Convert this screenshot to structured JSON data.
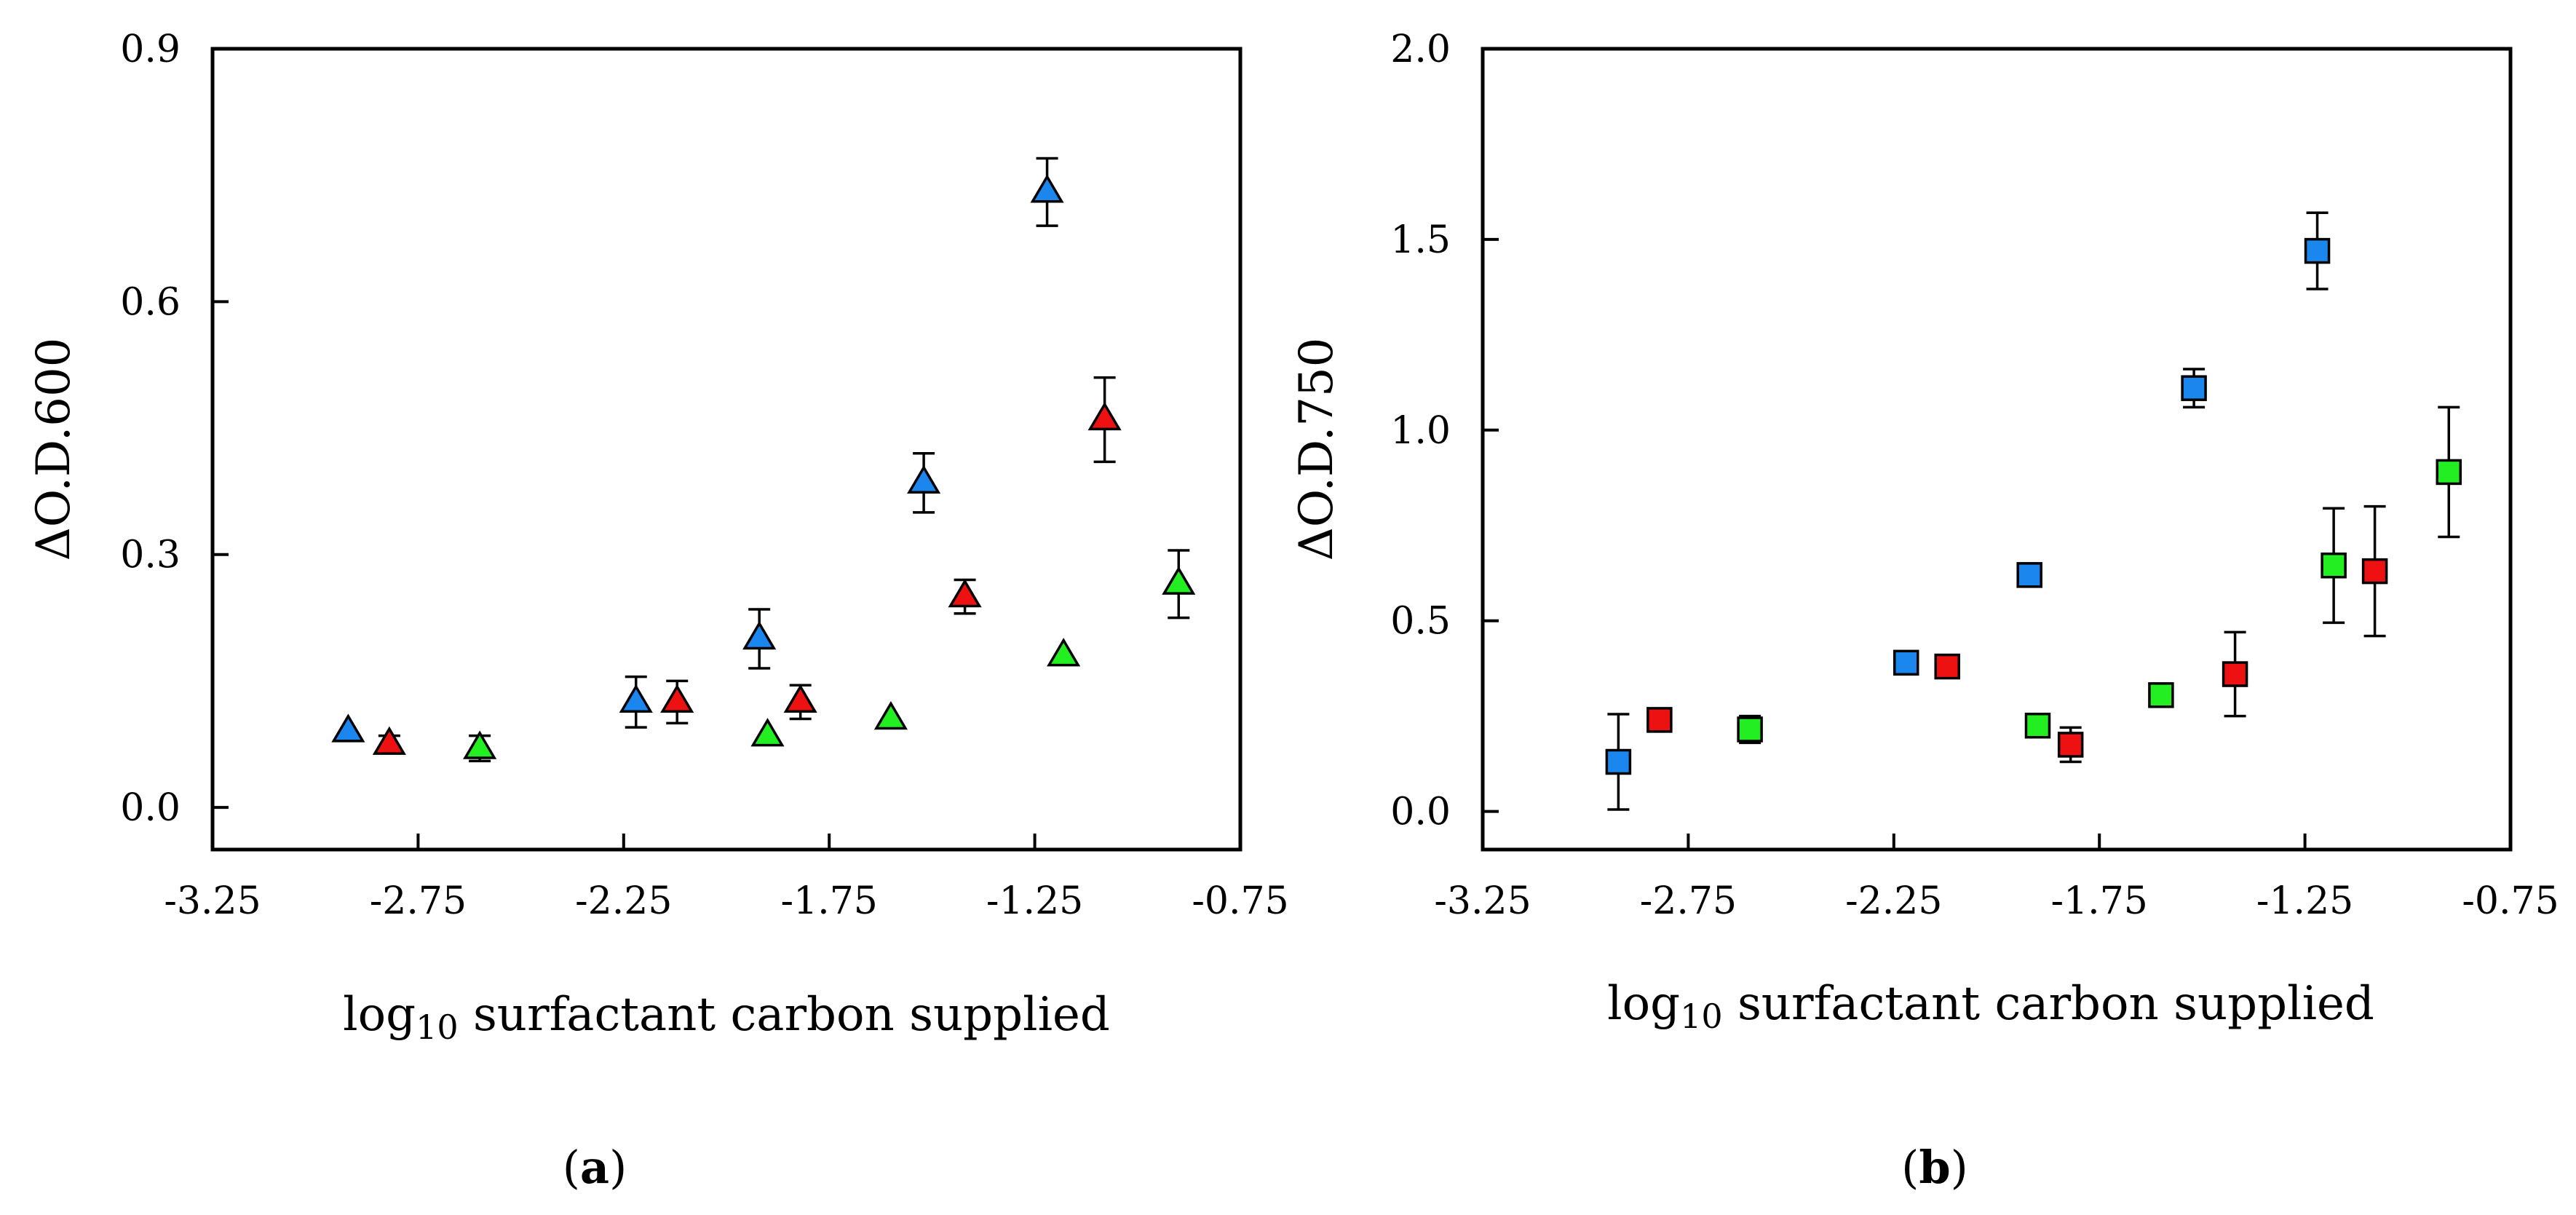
{
  "colors": {
    "blue": "#1a86ee",
    "red": "#ee1111",
    "green": "#22ee22",
    "outline": "#000000"
  },
  "chart_data": [
    {
      "type": "scatter",
      "panel_label": {
        "open": "(",
        "letter": "a",
        "close": ")"
      },
      "marker": "triangle",
      "xlabel": {
        "pre": "log",
        "sub": "10",
        "post": " surfactant carbon supplied"
      },
      "ylabel": "ΔO.D.600",
      "xlim": [
        -3.25,
        -0.75
      ],
      "ylim": [
        -0.05,
        0.9
      ],
      "xticks": [
        "-3.25",
        "-2.75",
        "-2.25",
        "-1.75",
        "-1.25",
        "-0.75"
      ],
      "xtick_values": [
        -3.25,
        -2.75,
        -2.25,
        -1.75,
        -1.25,
        -0.75
      ],
      "yticks": [
        "0.0",
        "0.3",
        "0.6",
        "0.9"
      ],
      "ytick_values": [
        0.0,
        0.3,
        0.6,
        0.9
      ],
      "grid": false,
      "series": [
        {
          "color": "blue",
          "points": [
            {
              "x": -2.92,
              "y": 0.09,
              "err": 0.0
            },
            {
              "x": -2.22,
              "y": 0.125,
              "err": 0.03
            },
            {
              "x": -1.92,
              "y": 0.2,
              "err": 0.035
            },
            {
              "x": -1.52,
              "y": 0.385,
              "err": 0.035
            },
            {
              "x": -1.22,
              "y": 0.73,
              "err": 0.04
            }
          ]
        },
        {
          "color": "red",
          "points": [
            {
              "x": -2.82,
              "y": 0.075,
              "err": 0.01
            },
            {
              "x": -2.12,
              "y": 0.125,
              "err": 0.025
            },
            {
              "x": -1.82,
              "y": 0.125,
              "err": 0.02
            },
            {
              "x": -1.42,
              "y": 0.25,
              "err": 0.02
            },
            {
              "x": -1.08,
              "y": 0.46,
              "err": 0.05
            }
          ]
        },
        {
          "color": "green",
          "points": [
            {
              "x": -2.6,
              "y": 0.07,
              "err": 0.015
            },
            {
              "x": -1.9,
              "y": 0.085,
              "err": 0.0
            },
            {
              "x": -1.6,
              "y": 0.105,
              "err": 0.0
            },
            {
              "x": -1.18,
              "y": 0.18,
              "err": 0.0
            },
            {
              "x": -0.9,
              "y": 0.265,
              "err": 0.04
            }
          ]
        }
      ]
    },
    {
      "type": "scatter",
      "panel_label": {
        "open": "(",
        "letter": "b",
        "close": ")"
      },
      "marker": "square",
      "xlabel": {
        "pre": "log",
        "sub": "10",
        "post": " surfactant carbon supplied"
      },
      "ylabel": "ΔO.D.750",
      "xlim": [
        -3.25,
        -0.75
      ],
      "ylim": [
        -0.1,
        2.0
      ],
      "xticks": [
        "-3.25",
        "-2.75",
        "-2.25",
        "-1.75",
        "-1.25",
        "-0.75"
      ],
      "xtick_values": [
        -3.25,
        -2.75,
        -2.25,
        -1.75,
        -1.25,
        -0.75
      ],
      "yticks": [
        "0.0",
        "0.5",
        "1.0",
        "1.5",
        "2.0"
      ],
      "ytick_values": [
        0.0,
        0.5,
        1.0,
        1.5,
        2.0
      ],
      "grid": false,
      "series": [
        {
          "color": "blue",
          "points": [
            {
              "x": -2.92,
              "y": 0.13,
              "err": 0.125
            },
            {
              "x": -2.22,
              "y": 0.39,
              "err": 0.0
            },
            {
              "x": -1.92,
              "y": 0.62,
              "err": 0.0
            },
            {
              "x": -1.52,
              "y": 1.11,
              "err": 0.05
            },
            {
              "x": -1.22,
              "y": 1.47,
              "err": 0.1
            }
          ]
        },
        {
          "color": "red",
          "points": [
            {
              "x": -2.82,
              "y": 0.24,
              "err": 0.0
            },
            {
              "x": -2.12,
              "y": 0.38,
              "err": 0.0
            },
            {
              "x": -1.82,
              "y": 0.175,
              "err": 0.045
            },
            {
              "x": -1.42,
              "y": 0.36,
              "err": 0.11
            },
            {
              "x": -1.08,
              "y": 0.63,
              "err": 0.17
            }
          ]
        },
        {
          "color": "green",
          "points": [
            {
              "x": -2.6,
              "y": 0.215,
              "err": 0.035
            },
            {
              "x": -1.9,
              "y": 0.225,
              "err": 0.0
            },
            {
              "x": -1.6,
              "y": 0.305,
              "err": 0.0
            },
            {
              "x": -1.18,
              "y": 0.645,
              "err": 0.15
            },
            {
              "x": -0.9,
              "y": 0.89,
              "err": 0.17
            }
          ]
        }
      ]
    }
  ]
}
